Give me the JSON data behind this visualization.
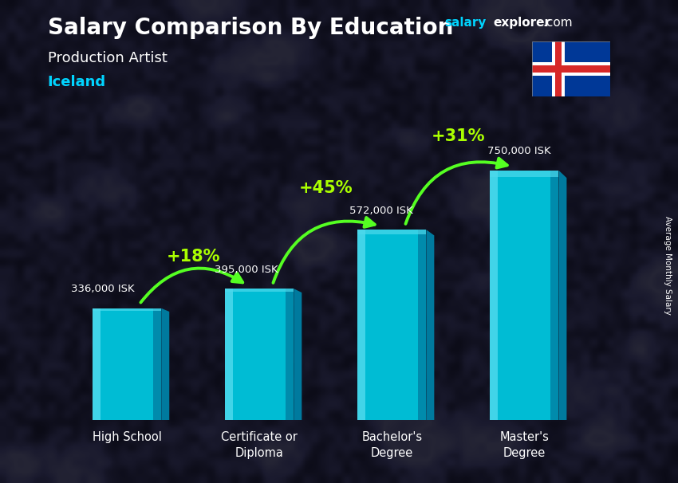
{
  "title_main": "Salary Comparison By Education",
  "title_sub": "Production Artist",
  "title_country": "Iceland",
  "categories": [
    "High School",
    "Certificate or\nDiploma",
    "Bachelor's\nDegree",
    "Master's\nDegree"
  ],
  "values": [
    336000,
    395000,
    572000,
    750000
  ],
  "value_labels": [
    "336,000 ISK",
    "395,000 ISK",
    "572,000 ISK",
    "750,000 ISK"
  ],
  "pct_changes": [
    "+18%",
    "+45%",
    "+31%"
  ],
  "bar_color_main": "#00bcd4",
  "bar_color_light": "#4dd9ec",
  "bar_color_dark": "#0086a8",
  "bar_color_side": "#007a9e",
  "bg_color": "#1a1a2e",
  "text_color_white": "#ffffff",
  "text_color_cyan": "#00d4ff",
  "text_color_green": "#aaff00",
  "ylabel": "Average Monthly Salary",
  "ylim": [
    0,
    870000
  ],
  "bar_width": 0.52,
  "arrow_color": "#55ff22",
  "value_label_color": "#ffffff",
  "flag_blue": "#003897",
  "flag_red": "#d72828",
  "brand_cyan": "#00d4ff"
}
